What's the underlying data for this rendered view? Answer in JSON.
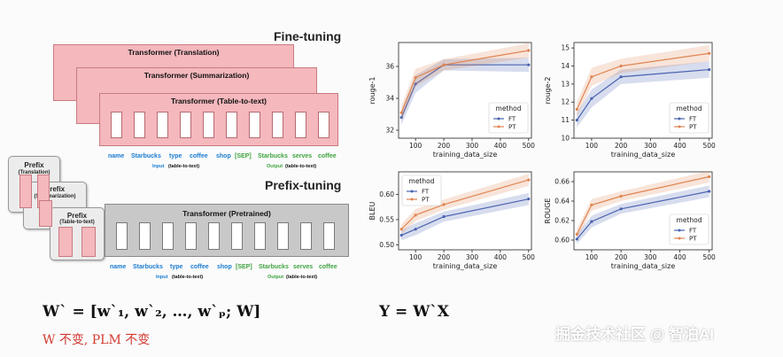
{
  "diagram": {
    "fine_tuning_title": "Fine-tuning",
    "prefix_tuning_title": "Prefix-tuning",
    "cards": [
      {
        "title": "Transformer (Translation)"
      },
      {
        "title": "Transformer (Summarization)"
      },
      {
        "title": "Transformer (Table-to-text)"
      }
    ],
    "pretrained_title": "Transformer (Pretrained)",
    "tokens_input": [
      "name",
      "Starbucks",
      "type",
      "coffee",
      "shop"
    ],
    "token_sep": "[SEP]",
    "tokens_output": [
      "Starbucks",
      "serves",
      "coffee"
    ],
    "input_label": "Input",
    "input_tag": "(table-to-text)",
    "output_label": "Output",
    "output_tag": "(table-to-text)",
    "prefix_cards": [
      {
        "title": "Prefix",
        "sub": "(Translation)"
      },
      {
        "title": "Prefix",
        "sub": "(Summarization)"
      },
      {
        "title": "Prefix",
        "sub": "(Table-to-text)"
      }
    ]
  },
  "formulas": {
    "w_prime": "W` = [w`₁, w`₂, …, w`ₚ; W]",
    "y_eq": "Y = W`X",
    "note": "W 不变, PLM 不变"
  },
  "watermark": "掘金技术社区 @ 智泊AI",
  "colors": {
    "ft": "#4a63b0",
    "pt": "#e08552",
    "card": "#f4b8bd",
    "gray": "#c8c8c8"
  },
  "chart_data": [
    {
      "type": "line",
      "ylabel": "rouge-1",
      "xlabel": "training_data_size",
      "legend_title": "method",
      "legend_pos": "bottom-right",
      "x": [
        50,
        100,
        200,
        500
      ],
      "xticks": [
        100,
        200,
        300,
        400,
        500
      ],
      "ylim": [
        31.5,
        37.5
      ],
      "yticks": [
        32,
        34,
        36
      ],
      "series": [
        {
          "name": "FT",
          "values": [
            32.8,
            34.9,
            36.1,
            36.1
          ]
        },
        {
          "name": "PT",
          "values": [
            33.1,
            35.3,
            36.1,
            37.0
          ]
        }
      ]
    },
    {
      "type": "line",
      "ylabel": "rouge-2",
      "xlabel": "training_data_size",
      "legend_title": "method",
      "legend_pos": "bottom-right",
      "x": [
        50,
        100,
        200,
        500
      ],
      "xticks": [
        100,
        200,
        300,
        400,
        500
      ],
      "ylim": [
        10,
        15.3
      ],
      "yticks": [
        10,
        11,
        12,
        13,
        14,
        15
      ],
      "series": [
        {
          "name": "FT",
          "values": [
            11.0,
            12.2,
            13.4,
            13.8
          ]
        },
        {
          "name": "PT",
          "values": [
            11.6,
            13.4,
            14.0,
            14.7
          ]
        }
      ]
    },
    {
      "type": "line",
      "ylabel": "BLEU",
      "xlabel": "training_data_size",
      "legend_title": "method",
      "legend_pos": "top-left",
      "x": [
        50,
        100,
        200,
        500
      ],
      "xticks": [
        100,
        200,
        300,
        400,
        500
      ],
      "ylim": [
        0.49,
        0.645
      ],
      "yticks": [
        0.5,
        0.55,
        0.6
      ],
      "series": [
        {
          "name": "FT",
          "values": [
            0.519,
            0.531,
            0.556,
            0.591
          ]
        },
        {
          "name": "PT",
          "values": [
            0.531,
            0.559,
            0.58,
            0.629
          ]
        }
      ]
    },
    {
      "type": "line",
      "ylabel": "ROUGE",
      "xlabel": "training_data_size",
      "legend_title": "method",
      "legend_pos": "bottom-right",
      "x": [
        50,
        100,
        200,
        500
      ],
      "xticks": [
        100,
        200,
        300,
        400,
        500
      ],
      "ylim": [
        0.59,
        0.67
      ],
      "yticks": [
        0.6,
        0.62,
        0.64,
        0.66
      ],
      "series": [
        {
          "name": "FT",
          "values": [
            0.601,
            0.619,
            0.632,
            0.65
          ]
        },
        {
          "name": "PT",
          "values": [
            0.606,
            0.636,
            0.645,
            0.665
          ]
        }
      ]
    }
  ]
}
